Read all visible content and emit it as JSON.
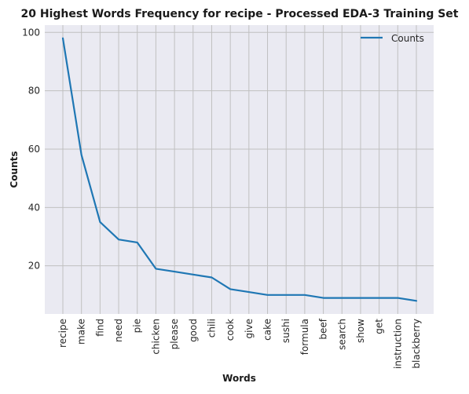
{
  "chart_data": {
    "type": "line",
    "title": "20 Highest Words Frequency for recipe - Processed EDA-3 Training Set",
    "xlabel": "Words",
    "ylabel": "Counts",
    "categories": [
      "recipe",
      "make",
      "find",
      "need",
      "pie",
      "chicken",
      "please",
      "good",
      "chili",
      "cook",
      "give",
      "cake",
      "sushi",
      "formula",
      "beef",
      "search",
      "show",
      "get",
      "instruction",
      "blackberry"
    ],
    "series": [
      {
        "name": "Counts",
        "color": "#1f77b4",
        "values": [
          98,
          58,
          35,
          29,
          28,
          19,
          18,
          17,
          16,
          12,
          11,
          10,
          10,
          10,
          9,
          9,
          9,
          9,
          9,
          8
        ]
      }
    ],
    "ylim": [
      3.5,
      102.5
    ],
    "yticks": [
      20,
      40,
      60,
      80,
      100
    ],
    "grid": true,
    "legend_position": "top-right",
    "background": "#eaeaf2",
    "grid_color": "#c0c0c0"
  }
}
